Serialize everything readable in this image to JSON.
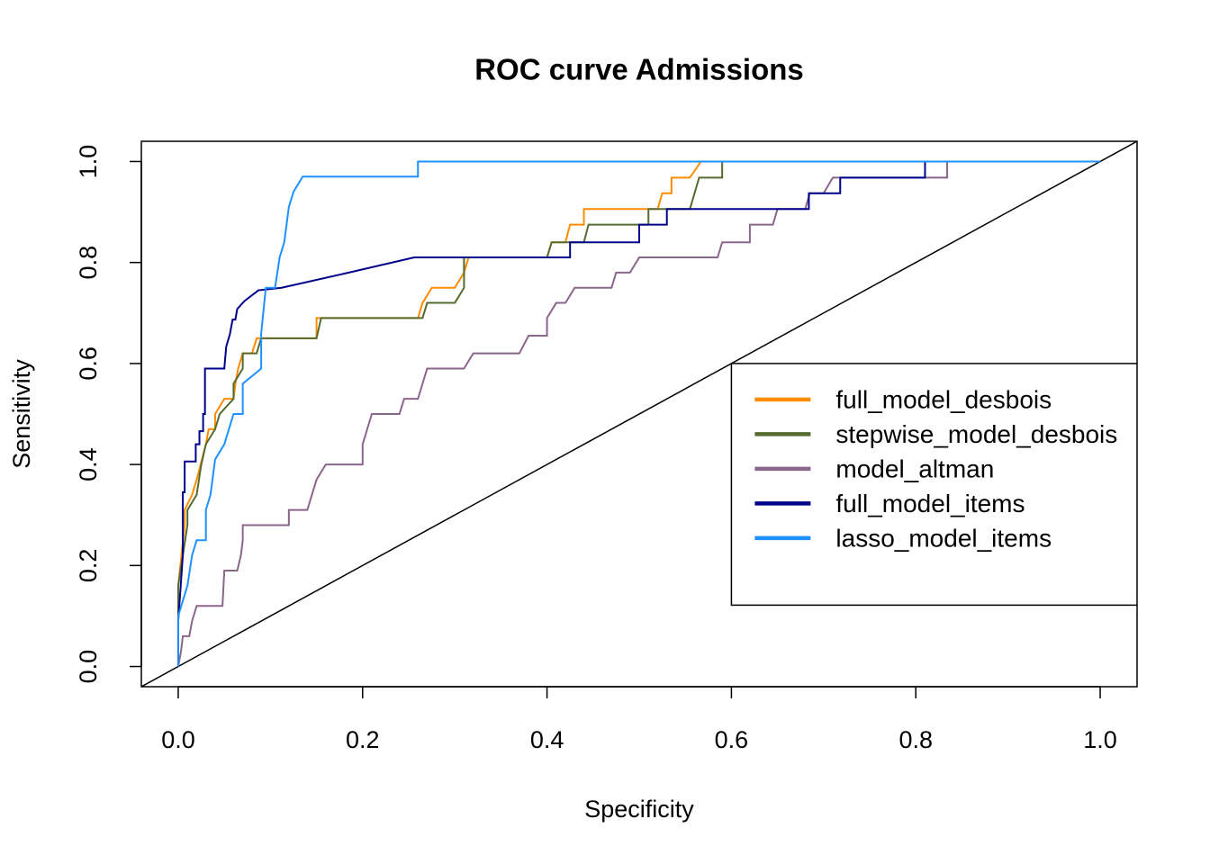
{
  "chart_data": {
    "type": "line",
    "title": "ROC curve Admissions",
    "x_label": "Specificity",
    "y_label": "Sensitivity",
    "xlim": [
      -0.04,
      1.04
    ],
    "ylim": [
      -0.04,
      1.04
    ],
    "xticks": [
      {
        "value": 0,
        "label": "0.0"
      },
      0.2,
      0.4,
      0.6,
      0.8,
      {
        "value": 1,
        "label": "1.0"
      }
    ],
    "yticks": [
      {
        "value": 0,
        "label": "0.0"
      },
      0.2,
      0.4,
      0.6,
      0.8,
      {
        "value": 1,
        "label": "1.0"
      }
    ],
    "legend_position": "right",
    "reference_line": true,
    "series": [
      {
        "name": "full_model_desbois",
        "color": "#FF8C00",
        "x": [
          0,
          0,
          0.007,
          0.007,
          0.015,
          0.02,
          0.03,
          0.033,
          0.04,
          0.04,
          0.05,
          0.06,
          0.062,
          0.065,
          0.07,
          0.08,
          0.085,
          0.15,
          0.15,
          0.26,
          0.265,
          0.275,
          0.3,
          0.31,
          0.315,
          0.4,
          0.405,
          0.42,
          0.425,
          0.44,
          0.44,
          0.52,
          0.525,
          0.535,
          0.535,
          0.555,
          0.567,
          1.0
        ],
        "values": [
          0,
          0.16,
          0.28,
          0.31,
          0.34,
          0.37,
          0.44,
          0.47,
          0.47,
          0.5,
          0.53,
          0.53,
          0.56,
          0.59,
          0.62,
          0.62,
          0.65,
          0.65,
          0.69,
          0.69,
          0.72,
          0.75,
          0.75,
          0.78,
          0.81,
          0.81,
          0.84,
          0.84,
          0.875,
          0.875,
          0.906,
          0.906,
          0.937,
          0.937,
          0.968,
          0.968,
          1.0,
          1.0
        ]
      },
      {
        "name": "stepwise_model_desbois",
        "color": "#556B2F",
        "x": [
          0,
          0,
          0.01,
          0.01,
          0.02,
          0.025,
          0.03,
          0.04,
          0.045,
          0.06,
          0.06,
          0.07,
          0.07,
          0.085,
          0.09,
          0.15,
          0.155,
          0.265,
          0.27,
          0.3,
          0.31,
          0.31,
          0.4,
          0.405,
          0.44,
          0.445,
          0.51,
          0.51,
          0.555,
          0.56,
          0.565,
          0.59,
          0.59,
          1.0
        ],
        "values": [
          0,
          0.16,
          0.28,
          0.31,
          0.34,
          0.4,
          0.44,
          0.47,
          0.5,
          0.53,
          0.56,
          0.59,
          0.62,
          0.62,
          0.65,
          0.65,
          0.69,
          0.69,
          0.72,
          0.72,
          0.75,
          0.81,
          0.81,
          0.84,
          0.84,
          0.875,
          0.875,
          0.906,
          0.906,
          0.937,
          0.968,
          0.968,
          1.0,
          1.0
        ]
      },
      {
        "name": "model_altman",
        "color": "#8B668B",
        "x": [
          0,
          0.003,
          0.005,
          0.012,
          0.015,
          0.02,
          0.048,
          0.05,
          0.064,
          0.068,
          0.07,
          0.07,
          0.12,
          0.12,
          0.14,
          0.145,
          0.15,
          0.16,
          0.2,
          0.2,
          0.205,
          0.21,
          0.24,
          0.245,
          0.26,
          0.265,
          0.27,
          0.31,
          0.32,
          0.37,
          0.38,
          0.4,
          0.4,
          0.41,
          0.42,
          0.43,
          0.47,
          0.475,
          0.49,
          0.5,
          0.585,
          0.59,
          0.62,
          0.62,
          0.645,
          0.65,
          0.68,
          0.685,
          0.7,
          0.71,
          0.74,
          0.834,
          0.834,
          1.0
        ],
        "values": [
          0,
          0.03,
          0.06,
          0.06,
          0.09,
          0.12,
          0.12,
          0.19,
          0.19,
          0.22,
          0.25,
          0.28,
          0.28,
          0.31,
          0.31,
          0.34,
          0.37,
          0.4,
          0.4,
          0.44,
          0.47,
          0.5,
          0.5,
          0.53,
          0.53,
          0.56,
          0.59,
          0.59,
          0.62,
          0.62,
          0.655,
          0.655,
          0.69,
          0.72,
          0.72,
          0.75,
          0.75,
          0.78,
          0.78,
          0.81,
          0.81,
          0.84,
          0.84,
          0.875,
          0.875,
          0.906,
          0.906,
          0.937,
          0.937,
          0.968,
          0.968,
          0.968,
          1.0,
          1.0
        ]
      },
      {
        "name": "full_model_items",
        "color": "#00008B",
        "x": [
          0,
          0,
          0.005,
          0.005,
          0.007,
          0.007,
          0.019,
          0.019,
          0.023,
          0.023,
          0.027,
          0.027,
          0.029,
          0.029,
          0.05,
          0.052,
          0.056,
          0.059,
          0.062,
          0.064,
          0.072,
          0.087,
          0.112,
          0.185,
          0.256,
          0.425,
          0.425,
          0.5,
          0.5,
          0.53,
          0.53,
          0.684,
          0.684,
          0.718,
          0.718,
          0.81,
          0.81,
          1.0
        ],
        "values": [
          0,
          0.09,
          0.22,
          0.345,
          0.345,
          0.406,
          0.406,
          0.44,
          0.44,
          0.466,
          0.466,
          0.5,
          0.5,
          0.59,
          0.59,
          0.633,
          0.658,
          0.687,
          0.687,
          0.708,
          0.724,
          0.745,
          0.75,
          0.78,
          0.81,
          0.81,
          0.84,
          0.84,
          0.875,
          0.875,
          0.906,
          0.906,
          0.937,
          0.937,
          0.968,
          0.968,
          1.0,
          1.0
        ]
      },
      {
        "name": "lasso_model_items",
        "color": "#1E90FF",
        "x": [
          0,
          0,
          0.01,
          0.015,
          0.02,
          0.03,
          0.03,
          0.035,
          0.04,
          0.05,
          0.055,
          0.06,
          0.07,
          0.07,
          0.09,
          0.09,
          0.095,
          0.105,
          0.11,
          0.115,
          0.12,
          0.125,
          0.135,
          0.26,
          0.26,
          1.0
        ],
        "values": [
          0,
          0.1,
          0.16,
          0.22,
          0.25,
          0.25,
          0.31,
          0.34,
          0.41,
          0.44,
          0.47,
          0.5,
          0.5,
          0.56,
          0.59,
          0.66,
          0.75,
          0.75,
          0.81,
          0.84,
          0.91,
          0.94,
          0.97,
          0.97,
          1.0,
          1.0
        ]
      }
    ]
  }
}
